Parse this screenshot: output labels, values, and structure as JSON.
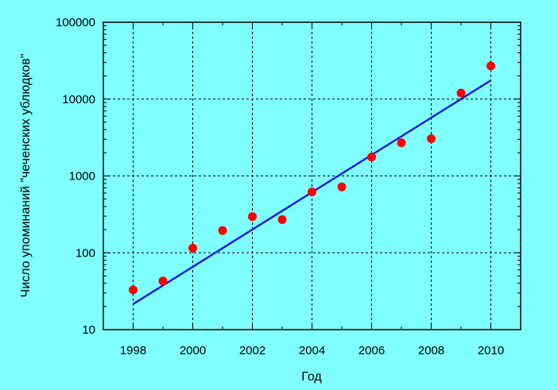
{
  "chart_data": {
    "type": "scatter",
    "title": "",
    "xlabel": "Год",
    "ylabel": "Число упоминаний \"чеченских ублюдков\"",
    "x_scale": "linear",
    "y_scale": "log",
    "xlim": [
      1997,
      2011
    ],
    "ylim": [
      10,
      100000
    ],
    "x_ticks": [
      1998,
      2000,
      2002,
      2004,
      2006,
      2008,
      2010
    ],
    "x_tick_labels": [
      "1998",
      "2000",
      "2002",
      "2004",
      "2006",
      "2008",
      "2010"
    ],
    "y_ticks": [
      10,
      100,
      1000,
      10000,
      100000
    ],
    "y_tick_labels": [
      "10",
      "100",
      "1000",
      "10000",
      "100000"
    ],
    "grid": true,
    "background_color": "#80FFFF",
    "series": [
      {
        "kind": "points",
        "color": "#FF0000",
        "x": [
          1998,
          1999,
          2000,
          2001,
          2002,
          2003,
          2004,
          2005,
          2006,
          2007,
          2008,
          2009,
          2010
        ],
        "y": [
          33,
          43,
          115,
          195,
          295,
          270,
          620,
          720,
          1760,
          2700,
          3050,
          12000,
          27000
        ]
      },
      {
        "kind": "trend-line",
        "color": "#0000FF",
        "x": [
          1998,
          2010
        ],
        "y": [
          21.5,
          17500
        ]
      }
    ]
  }
}
